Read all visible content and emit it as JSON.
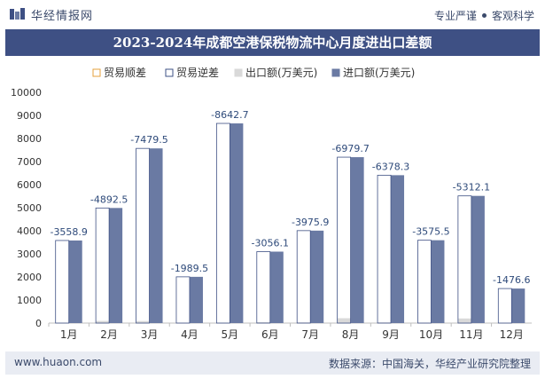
{
  "header": {
    "brand_name": "华经情报网",
    "tagline_left": "专业严谨",
    "tagline_right": "客观科学"
  },
  "colors": {
    "title_bar": "#3e5084",
    "import_bar": "#6a7aa3",
    "export_bar": "#d9d9d9",
    "deficit_marker": "#3e5084",
    "label_text": "#2e4a7a"
  },
  "footer": {
    "website": "www.huaon.com",
    "source": "数据来源：中国海关，华经产业研究院整理"
  },
  "chart_data": {
    "type": "bar",
    "title": "2023-2024年成都空港保税物流中心月度进出口差额",
    "legend_position": "top",
    "legend": [
      "贸易顺差",
      "贸易逆差",
      "出口额(万美元)",
      "进口额(万美元)"
    ],
    "categories": [
      "1月",
      "2月",
      "3月",
      "4月",
      "5月",
      "6月",
      "7月",
      "8月",
      "9月",
      "10月",
      "11月",
      "12月"
    ],
    "series": [
      {
        "name": "出口额(万美元)",
        "values": [
          20,
          95,
          90,
          15,
          10,
          40,
          30,
          210,
          30,
          15,
          200,
          20
        ]
      },
      {
        "name": "进口额(万美元)",
        "values": [
          3578.9,
          4987.5,
          7569.5,
          2004.5,
          8652.7,
          3096.1,
          4005.9,
          7189.7,
          6408.3,
          3590.5,
          5512.1,
          1496.6
        ]
      },
      {
        "name": "贸易逆差",
        "values": [
          -3558.9,
          -4892.5,
          -7479.5,
          -1989.5,
          -8642.7,
          -3056.1,
          -3975.9,
          -6979.7,
          -6378.3,
          -3575.5,
          -5312.1,
          -1476.6
        ]
      }
    ],
    "data_labels": [
      "-3558.9",
      "-4892.5",
      "-7479.5",
      "-1989.5",
      "-8642.7",
      "-3056.1",
      "-3975.9",
      "-6979.7",
      "-6378.3",
      "-3575.5",
      "-5312.1",
      "-1476.6"
    ],
    "y_ticks": [
      "0",
      "1000",
      "2000",
      "3000",
      "4000",
      "5000",
      "6000",
      "7000",
      "8000",
      "9000",
      "10000"
    ],
    "ylim": [
      0,
      10000
    ],
    "grid": false
  }
}
